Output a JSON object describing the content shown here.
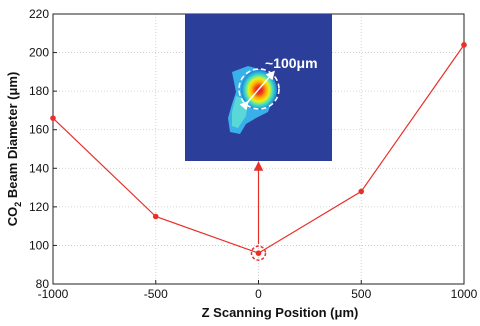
{
  "chart_data": {
    "type": "line",
    "title": "",
    "xlabel": "Z Scanning Position (μm)",
    "ylabel_main": "CO",
    "ylabel_sub": "2",
    "ylabel_rest": " Beam Diameter (μm)",
    "xlim": [
      -1000,
      1000
    ],
    "ylim": [
      80,
      220
    ],
    "x_ticks": [
      -1000,
      -500,
      0,
      500,
      1000
    ],
    "y_ticks": [
      80,
      100,
      120,
      140,
      160,
      180,
      200,
      220
    ],
    "x_tick_labels": [
      "-1000",
      "-500",
      "0",
      "500",
      "1000"
    ],
    "y_tick_labels": [
      "80",
      "100",
      "120",
      "140",
      "160",
      "180",
      "200",
      "220"
    ],
    "grid": true,
    "series": [
      {
        "color": "#e8302a",
        "x": [
          -1000,
          -500,
          0,
          500,
          1000
        ],
        "y": [
          166,
          115,
          96,
          128,
          204
        ]
      }
    ],
    "annotations": {
      "highlight_point_x": 0,
      "highlight_point_y": 96,
      "inset_label": "~100μm"
    }
  }
}
